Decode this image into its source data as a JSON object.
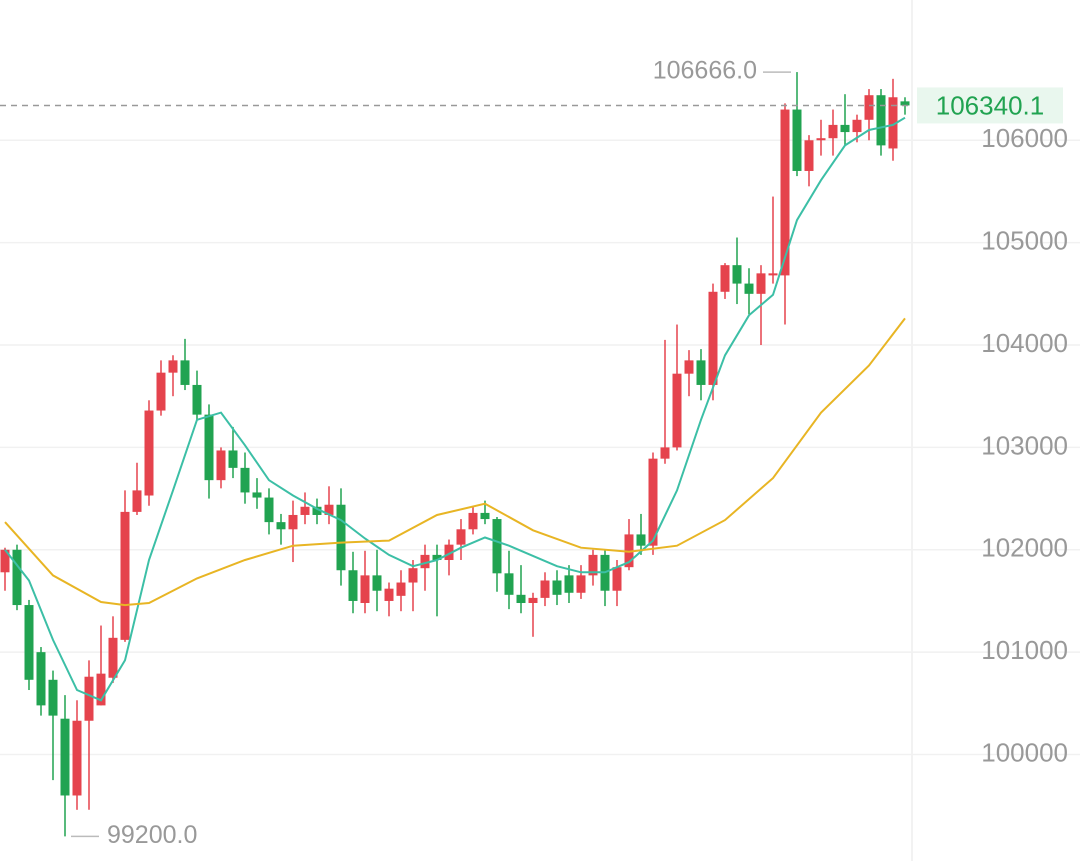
{
  "chart_data": {
    "type": "candlestick",
    "up_color": "#e5434d",
    "down_color": "#21a351",
    "open": [
      101780,
      102000,
      101460,
      101000,
      100730,
      100350,
      99600,
      100330,
      100480,
      100750,
      101120,
      102370,
      102530,
      103360,
      103730,
      103850,
      103610,
      103320,
      102680,
      102970,
      102800,
      102560,
      102510,
      102270,
      102200,
      102340,
      102420,
      102340,
      102440,
      101800,
      101480,
      101750,
      101500,
      101550,
      101680,
      101820,
      101950,
      101900,
      102050,
      102200,
      102360,
      102300,
      101770,
      101560,
      101480,
      101530,
      101700,
      101750,
      101580,
      101750,
      101950,
      101600,
      101830,
      102150,
      102040,
      102890,
      103000,
      103720,
      103850,
      103610,
      104520,
      104780,
      104600,
      104500,
      104680,
      104680,
      106300,
      105700,
      106000,
      106020,
      106150,
      106080,
      106200,
      106440,
      105920,
      106380
    ],
    "high": [
      102020,
      102050,
      101510,
      101050,
      100820,
      100580,
      100530,
      100920,
      101260,
      101350,
      102580,
      102850,
      103460,
      103850,
      103900,
      104060,
      103750,
      103420,
      103000,
      103200,
      102950,
      102700,
      102600,
      102350,
      102480,
      102560,
      102500,
      102620,
      102600,
      101980,
      101990,
      102000,
      101680,
      101800,
      101900,
      102050,
      102050,
      102100,
      102300,
      102420,
      102480,
      102320,
      101990,
      101850,
      101580,
      101780,
      101800,
      101850,
      101850,
      102000,
      102000,
      101900,
      102300,
      102350,
      102950,
      104050,
      104200,
      103950,
      103960,
      104600,
      104800,
      105050,
      104750,
      104780,
      105450,
      106360,
      106666,
      106050,
      106200,
      106300,
      106450,
      106250,
      106500,
      106500,
      106600,
      106420
    ],
    "low": [
      101600,
      101410,
      100630,
      100380,
      99750,
      99200,
      99460,
      99460,
      100480,
      100700,
      101100,
      102340,
      102430,
      103310,
      103500,
      103560,
      103270,
      102500,
      102600,
      102700,
      102450,
      102400,
      102150,
      102050,
      101880,
      102250,
      102250,
      102250,
      101650,
      101380,
      101380,
      101400,
      101350,
      101400,
      101400,
      101600,
      101350,
      101750,
      101900,
      102150,
      102250,
      101590,
      101420,
      101380,
      101150,
      101450,
      101460,
      101480,
      101520,
      101650,
      101450,
      101450,
      101800,
      101950,
      101950,
      102840,
      102970,
      103500,
      103460,
      103460,
      104450,
      104400,
      104300,
      104000,
      104600,
      104200,
      105650,
      105550,
      105850,
      105850,
      105950,
      105980,
      106000,
      105850,
      105800,
      106250
    ],
    "close": [
      102000,
      101460,
      100730,
      100480,
      100380,
      99600,
      100330,
      100760,
      100790,
      101140,
      102370,
      102580,
      103360,
      103730,
      103850,
      103610,
      103320,
      102680,
      102970,
      102800,
      102560,
      102510,
      102270,
      102200,
      102340,
      102420,
      102340,
      102440,
      101800,
      101500,
      101750,
      101600,
      101620,
      101680,
      101820,
      101950,
      101900,
      102050,
      102200,
      102360,
      102300,
      101770,
      101560,
      101480,
      101530,
      101700,
      101560,
      101580,
      101750,
      101950,
      101600,
      101830,
      102150,
      102040,
      102890,
      103000,
      103720,
      103850,
      103610,
      104520,
      104780,
      104600,
      104500,
      104700,
      104700,
      106300,
      105700,
      106000,
      106020,
      106150,
      106080,
      106200,
      106440,
      105950,
      106420,
      106340.1
    ],
    "lines": [
      {
        "color": "#3cbfa6",
        "x": [
          0,
          2,
          4,
          6,
          8,
          10,
          12,
          14,
          16,
          18,
          20,
          22,
          24,
          26,
          28,
          30,
          32,
          34,
          36,
          38,
          40,
          42,
          44,
          46,
          48,
          50,
          52,
          54,
          56,
          58,
          60,
          62,
          64,
          66,
          68,
          70,
          72,
          74,
          75
        ],
        "values": [
          102000,
          101700,
          101120,
          100630,
          100530,
          100920,
          101900,
          102580,
          103270,
          103340,
          103020,
          102680,
          102530,
          102400,
          102290,
          102110,
          101950,
          101840,
          101900,
          102020,
          102120,
          102040,
          101940,
          101840,
          101780,
          101780,
          101880,
          102090,
          102580,
          103270,
          103900,
          104290,
          104490,
          105220,
          105610,
          105950,
          106100,
          106150,
          106220
        ]
      },
      {
        "color": "#e8b524",
        "x": [
          0,
          4,
          8,
          10,
          12,
          16,
          20,
          24,
          28,
          32,
          36,
          40,
          44,
          48,
          52,
          56,
          60,
          64,
          68,
          72,
          75
        ],
        "values": [
          102270,
          101750,
          101490,
          101460,
          101480,
          101720,
          101900,
          102040,
          102070,
          102090,
          102340,
          102450,
          102190,
          102020,
          101980,
          102040,
          102290,
          102700,
          103340,
          103800,
          104260
        ]
      }
    ],
    "ylim": [
      98960,
      107370
    ],
    "yticks": [
      100000,
      101000,
      102000,
      103000,
      104000,
      105000,
      106000
    ],
    "grid": true,
    "annotations": [
      {
        "index": 66,
        "value": 106666,
        "label": "106666.0"
      },
      {
        "index": 5,
        "value": 99200,
        "label": "99200.0"
      }
    ],
    "last_price": 106340.1
  }
}
